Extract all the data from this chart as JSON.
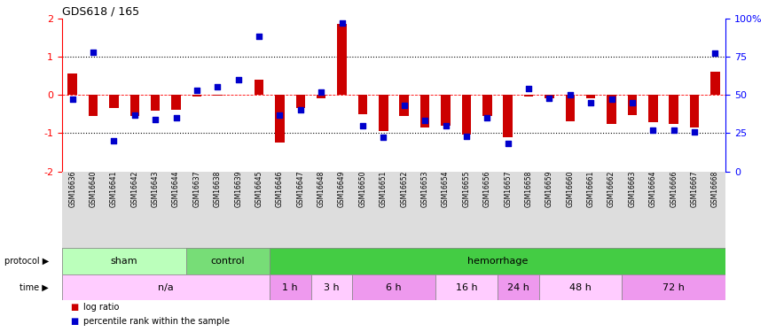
{
  "title": "GDS618 / 165",
  "samples": [
    "GSM16636",
    "GSM16640",
    "GSM16641",
    "GSM16642",
    "GSM16643",
    "GSM16644",
    "GSM16637",
    "GSM16638",
    "GSM16639",
    "GSM16645",
    "GSM16646",
    "GSM16647",
    "GSM16648",
    "GSM16649",
    "GSM16650",
    "GSM16651",
    "GSM16652",
    "GSM16653",
    "GSM16654",
    "GSM16655",
    "GSM16656",
    "GSM16657",
    "GSM16658",
    "GSM16659",
    "GSM16660",
    "GSM16661",
    "GSM16662",
    "GSM16663",
    "GSM16664",
    "GSM16666",
    "GSM16667",
    "GSM16668"
  ],
  "log_ratio": [
    0.55,
    -0.55,
    -0.35,
    -0.55,
    -0.42,
    -0.38,
    -0.05,
    -0.02,
    0.0,
    0.4,
    -1.25,
    -0.35,
    -0.08,
    1.85,
    -0.5,
    -0.95,
    -0.55,
    -0.85,
    -0.8,
    -1.05,
    -0.55,
    -1.1,
    -0.05,
    -0.08,
    -0.7,
    -0.08,
    -0.75,
    -0.52,
    -0.72,
    -0.75,
    -0.85,
    0.6
  ],
  "percentile": [
    47,
    78,
    20,
    37,
    34,
    35,
    53,
    55,
    60,
    88,
    37,
    40,
    52,
    97,
    30,
    22,
    43,
    33,
    30,
    23,
    35,
    18,
    54,
    48,
    50,
    45,
    47,
    45,
    27,
    27,
    26,
    77
  ],
  "protocol_groups": [
    {
      "label": "sham",
      "start": 0,
      "end": 6,
      "color": "#bbffbb"
    },
    {
      "label": "control",
      "start": 6,
      "end": 10,
      "color": "#77dd77"
    },
    {
      "label": "hemorrhage",
      "start": 10,
      "end": 32,
      "color": "#44cc44"
    }
  ],
  "time_groups": [
    {
      "label": "n/a",
      "start": 0,
      "end": 10,
      "color": "#ffccff"
    },
    {
      "label": "1 h",
      "start": 10,
      "end": 12,
      "color": "#ee99ee"
    },
    {
      "label": "3 h",
      "start": 12,
      "end": 14,
      "color": "#ffccff"
    },
    {
      "label": "6 h",
      "start": 14,
      "end": 18,
      "color": "#ee99ee"
    },
    {
      "label": "16 h",
      "start": 18,
      "end": 21,
      "color": "#ffccff"
    },
    {
      "label": "24 h",
      "start": 21,
      "end": 23,
      "color": "#ee99ee"
    },
    {
      "label": "48 h",
      "start": 23,
      "end": 27,
      "color": "#ffccff"
    },
    {
      "label": "72 h",
      "start": 27,
      "end": 32,
      "color": "#ee99ee"
    }
  ],
  "bar_color": "#cc0000",
  "dot_color": "#0000cc",
  "ylim_left": [
    -2,
    2
  ],
  "ylim_right": [
    0,
    100
  ],
  "yticks_left": [
    -2,
    -1,
    0,
    1,
    2
  ],
  "yticks_right": [
    0,
    25,
    50,
    75,
    100
  ],
  "ytick_labels_right": [
    "0",
    "25",
    "50",
    "75",
    "100%"
  ],
  "bar_width": 0.45,
  "dot_size": 14
}
